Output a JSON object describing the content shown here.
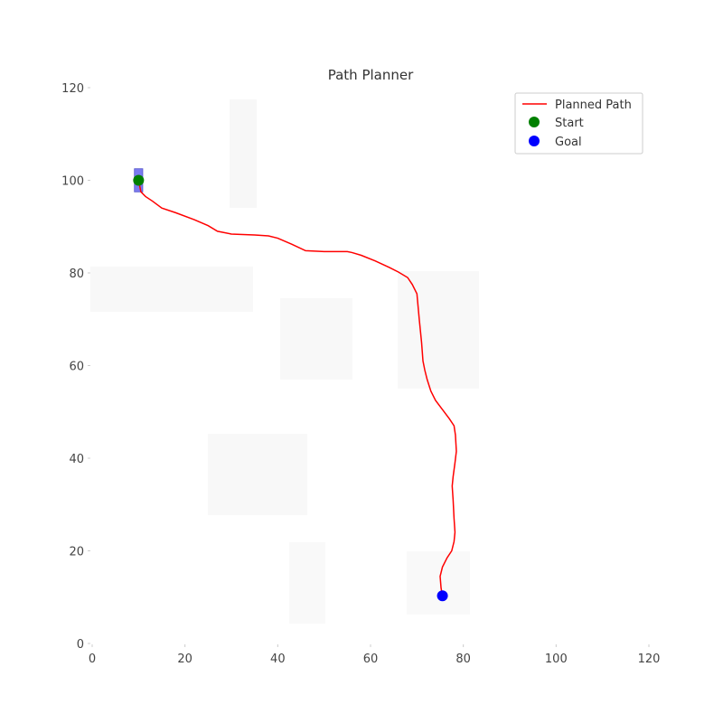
{
  "chart_data": {
    "type": "line",
    "title": "Path Planner",
    "xlabel": "",
    "ylabel": "",
    "xlim": [
      0,
      120
    ],
    "ylim": [
      0,
      120
    ],
    "xticks": [
      "0",
      "20",
      "40",
      "60",
      "80",
      "100",
      "120"
    ],
    "yticks": [
      "0",
      "20",
      "40",
      "60",
      "80",
      "100",
      "120"
    ],
    "grid": false,
    "legend_position": "top-right",
    "series": [
      {
        "name": "Planned Path",
        "color": "#ff0000",
        "x": [
          10,
          10.5,
          11.5,
          13,
          15,
          18,
          22,
          25,
          27,
          30,
          35,
          38,
          40,
          43,
          46,
          50,
          55,
          56,
          58,
          61,
          64,
          66,
          68,
          69,
          70,
          70.5,
          71,
          71.3,
          71.7,
          72.2,
          73,
          74,
          75.5,
          77,
          78,
          78.3,
          78.5,
          78.2,
          77.8,
          77.6,
          77.8,
          78,
          78.2,
          78,
          77.5,
          76.5,
          75.5,
          75,
          75.2,
          75.5
        ],
        "y": [
          100,
          97.5,
          96.5,
          95.5,
          94,
          93,
          91.5,
          90.2,
          89,
          88.4,
          88.2,
          88,
          87.5,
          86.2,
          84.8,
          84.6,
          84.6,
          84.4,
          83.8,
          82.6,
          81.2,
          80.2,
          79,
          77.5,
          75.5,
          70,
          65,
          61,
          59,
          57,
          54.5,
          52.5,
          50.5,
          48.5,
          47,
          45,
          41.5,
          39,
          36,
          34,
          31,
          27,
          24,
          22,
          20,
          18.5,
          16.5,
          14.5,
          12,
          10.3
        ]
      }
    ],
    "points": [
      {
        "name": "Start",
        "x": 10,
        "y": 100,
        "color": "#008000"
      },
      {
        "name": "Goal",
        "x": 75.5,
        "y": 10.3,
        "color": "#0000ff"
      }
    ],
    "start_marker": {
      "x": 10,
      "y": 100,
      "width": 1.8,
      "height": 5,
      "color": "#7b7bf0"
    },
    "obstacle_color": "#f6f6f6"
  }
}
